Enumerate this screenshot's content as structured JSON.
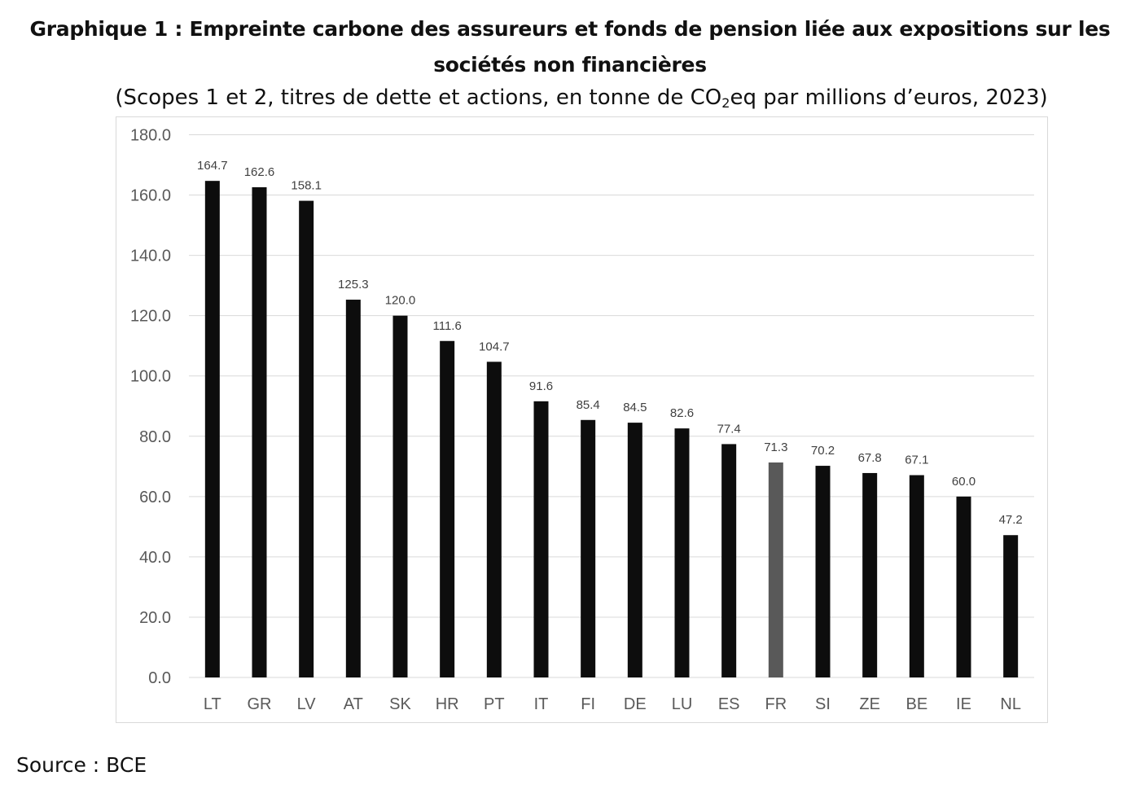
{
  "header": {
    "title_line1": "Graphique 1 : Empreinte carbone des assureurs et fonds de pension liée aux expositions sur les",
    "title_line2": "sociétés non financières",
    "subtitle_before": "(Scopes 1 et 2, titres de dette et actions, en tonne de CO",
    "subtitle_sub": "2",
    "subtitle_after": "eq par millions d’euros, 2023)"
  },
  "footer": {
    "source": "Source : BCE"
  },
  "colors": {
    "bar": "#0d0d0d",
    "highlight": "#595959",
    "grid": "#d9d9d9"
  },
  "chart_data": {
    "type": "bar",
    "categories": [
      "LT",
      "GR",
      "LV",
      "AT",
      "SK",
      "HR",
      "PT",
      "IT",
      "FI",
      "DE",
      "LU",
      "ES",
      "FR",
      "SI",
      "ZE",
      "BE",
      "IE",
      "NL"
    ],
    "values": [
      164.7,
      162.6,
      158.1,
      125.3,
      120.0,
      111.6,
      104.7,
      91.6,
      85.4,
      84.5,
      82.6,
      77.4,
      71.3,
      70.2,
      67.8,
      67.1,
      60.0,
      47.2
    ],
    "value_labels": [
      "164.7",
      "162.6",
      "158.1",
      "125.3",
      "120.0",
      "111.6",
      "104.7",
      "91.6",
      "85.4",
      "84.5",
      "82.6",
      "77.4",
      "71.3",
      "70.2",
      "67.8",
      "67.1",
      "60.0",
      "47.2"
    ],
    "highlight_category": "FR",
    "yticks": [
      "0.0",
      "20.0",
      "40.0",
      "60.0",
      "80.0",
      "100.0",
      "120.0",
      "140.0",
      "160.0",
      "180.0"
    ],
    "ylim": [
      0,
      180
    ],
    "grid": true,
    "legend": "none"
  }
}
